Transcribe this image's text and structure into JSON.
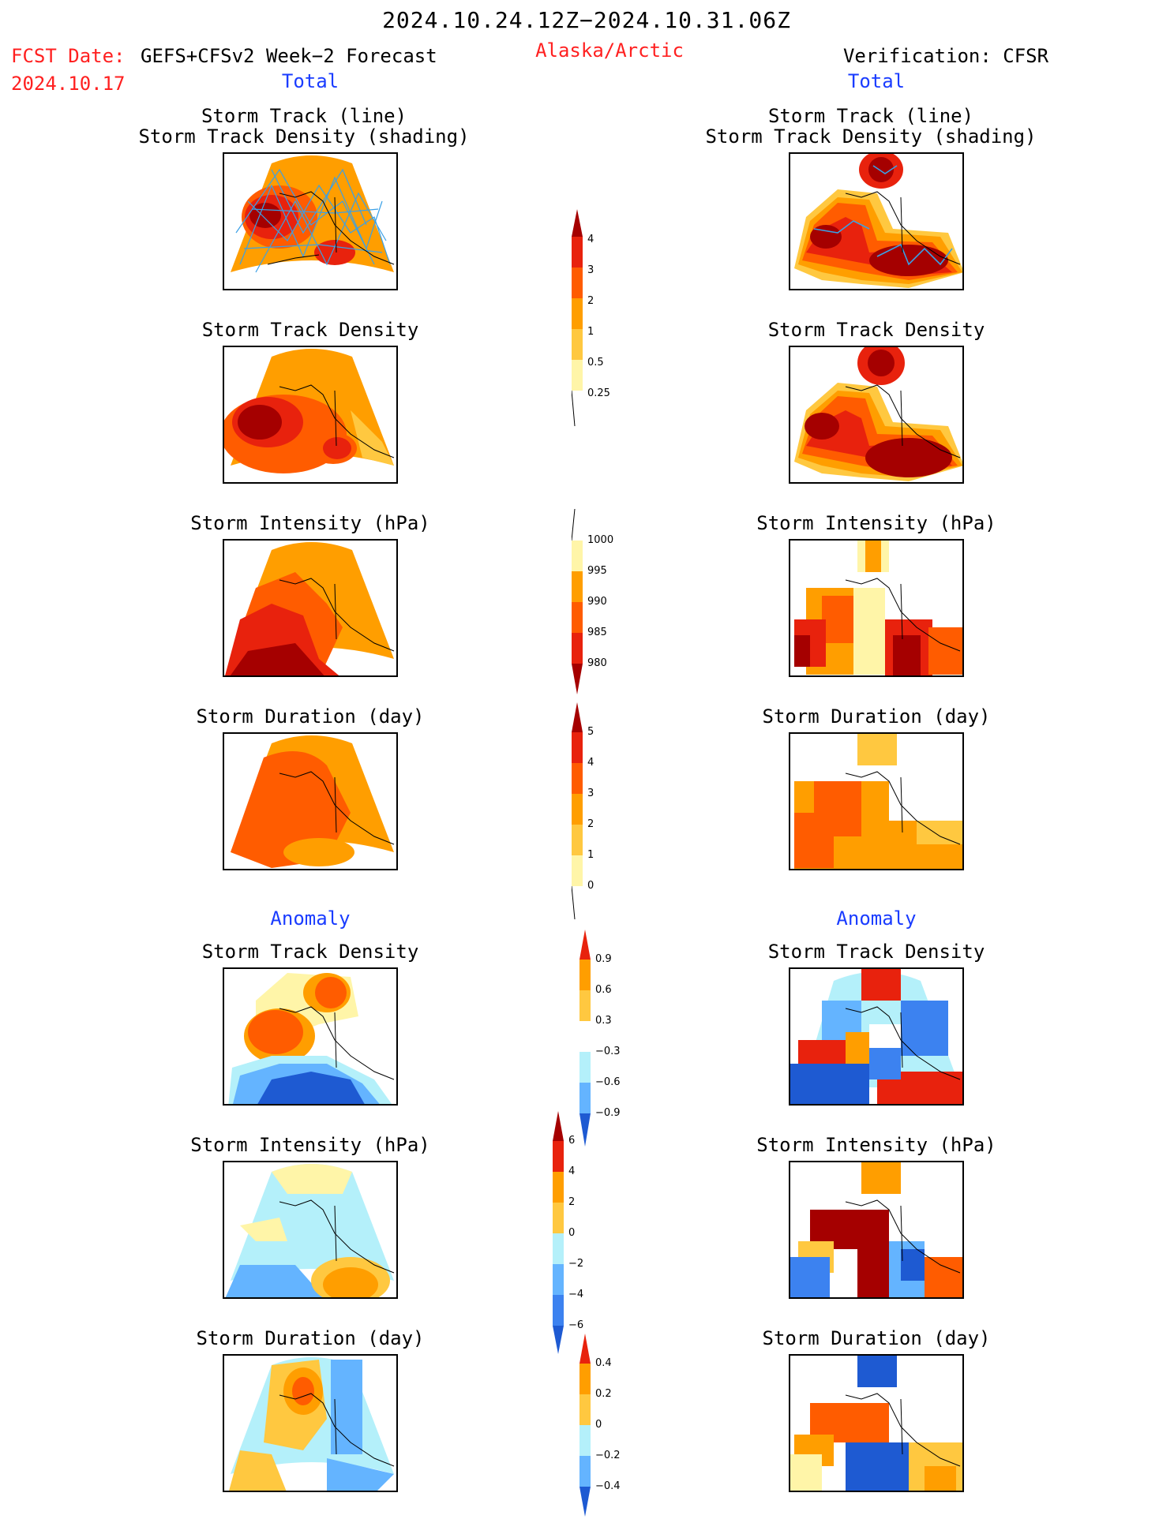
{
  "header": {
    "date_range": "2024.10.24.12Z−2024.10.31.06Z",
    "fcst_label": "FCST Date:",
    "fcst_model": "GEFS+CFSv2 Week−2 Forecast",
    "fcst_date": "2024.10.17",
    "region": "Alaska/Arctic",
    "verification": "Verification: CFSR",
    "left_total": "Total",
    "right_total": "Total",
    "left_anomaly": "Anomaly",
    "right_anomaly": "Anomaly"
  },
  "panel_titles": {
    "track_line": "Storm Track (line)",
    "track_shading": "Storm Track Density (shading)",
    "density": "Storm Track Density",
    "intensity": "Storm Intensity (hPa)",
    "duration": "Storm Duration (day)"
  },
  "colorbars": {
    "density": [
      "4",
      "3",
      "2",
      "1",
      "0.5",
      "0.25"
    ],
    "intensity": [
      "1000",
      "995",
      "990",
      "985",
      "980"
    ],
    "duration": [
      "5",
      "4",
      "3",
      "2",
      "1",
      "0"
    ],
    "density_anom": [
      "0.9",
      "0.6",
      "0.3",
      "−0.3",
      "−0.6",
      "−0.9"
    ],
    "intensity_anom": [
      "6",
      "4",
      "2",
      "0",
      "−2",
      "−4",
      "−6"
    ],
    "duration_anom": [
      "0.4",
      "0.2",
      "0",
      "−0.2",
      "−0.4"
    ]
  },
  "colors": {
    "dark_red": "#a50000",
    "red": "#e8220d",
    "orange_red": "#ff5c00",
    "orange": "#ff9e00",
    "light_orange": "#ffc840",
    "pale_yellow": "#fff5a8",
    "light_blue": "#b4f0fa",
    "sky_blue": "#64b4ff",
    "mid_blue": "#3c82f0",
    "dark_blue": "#1e5ad2",
    "track_line": "#3aa0e6"
  }
}
